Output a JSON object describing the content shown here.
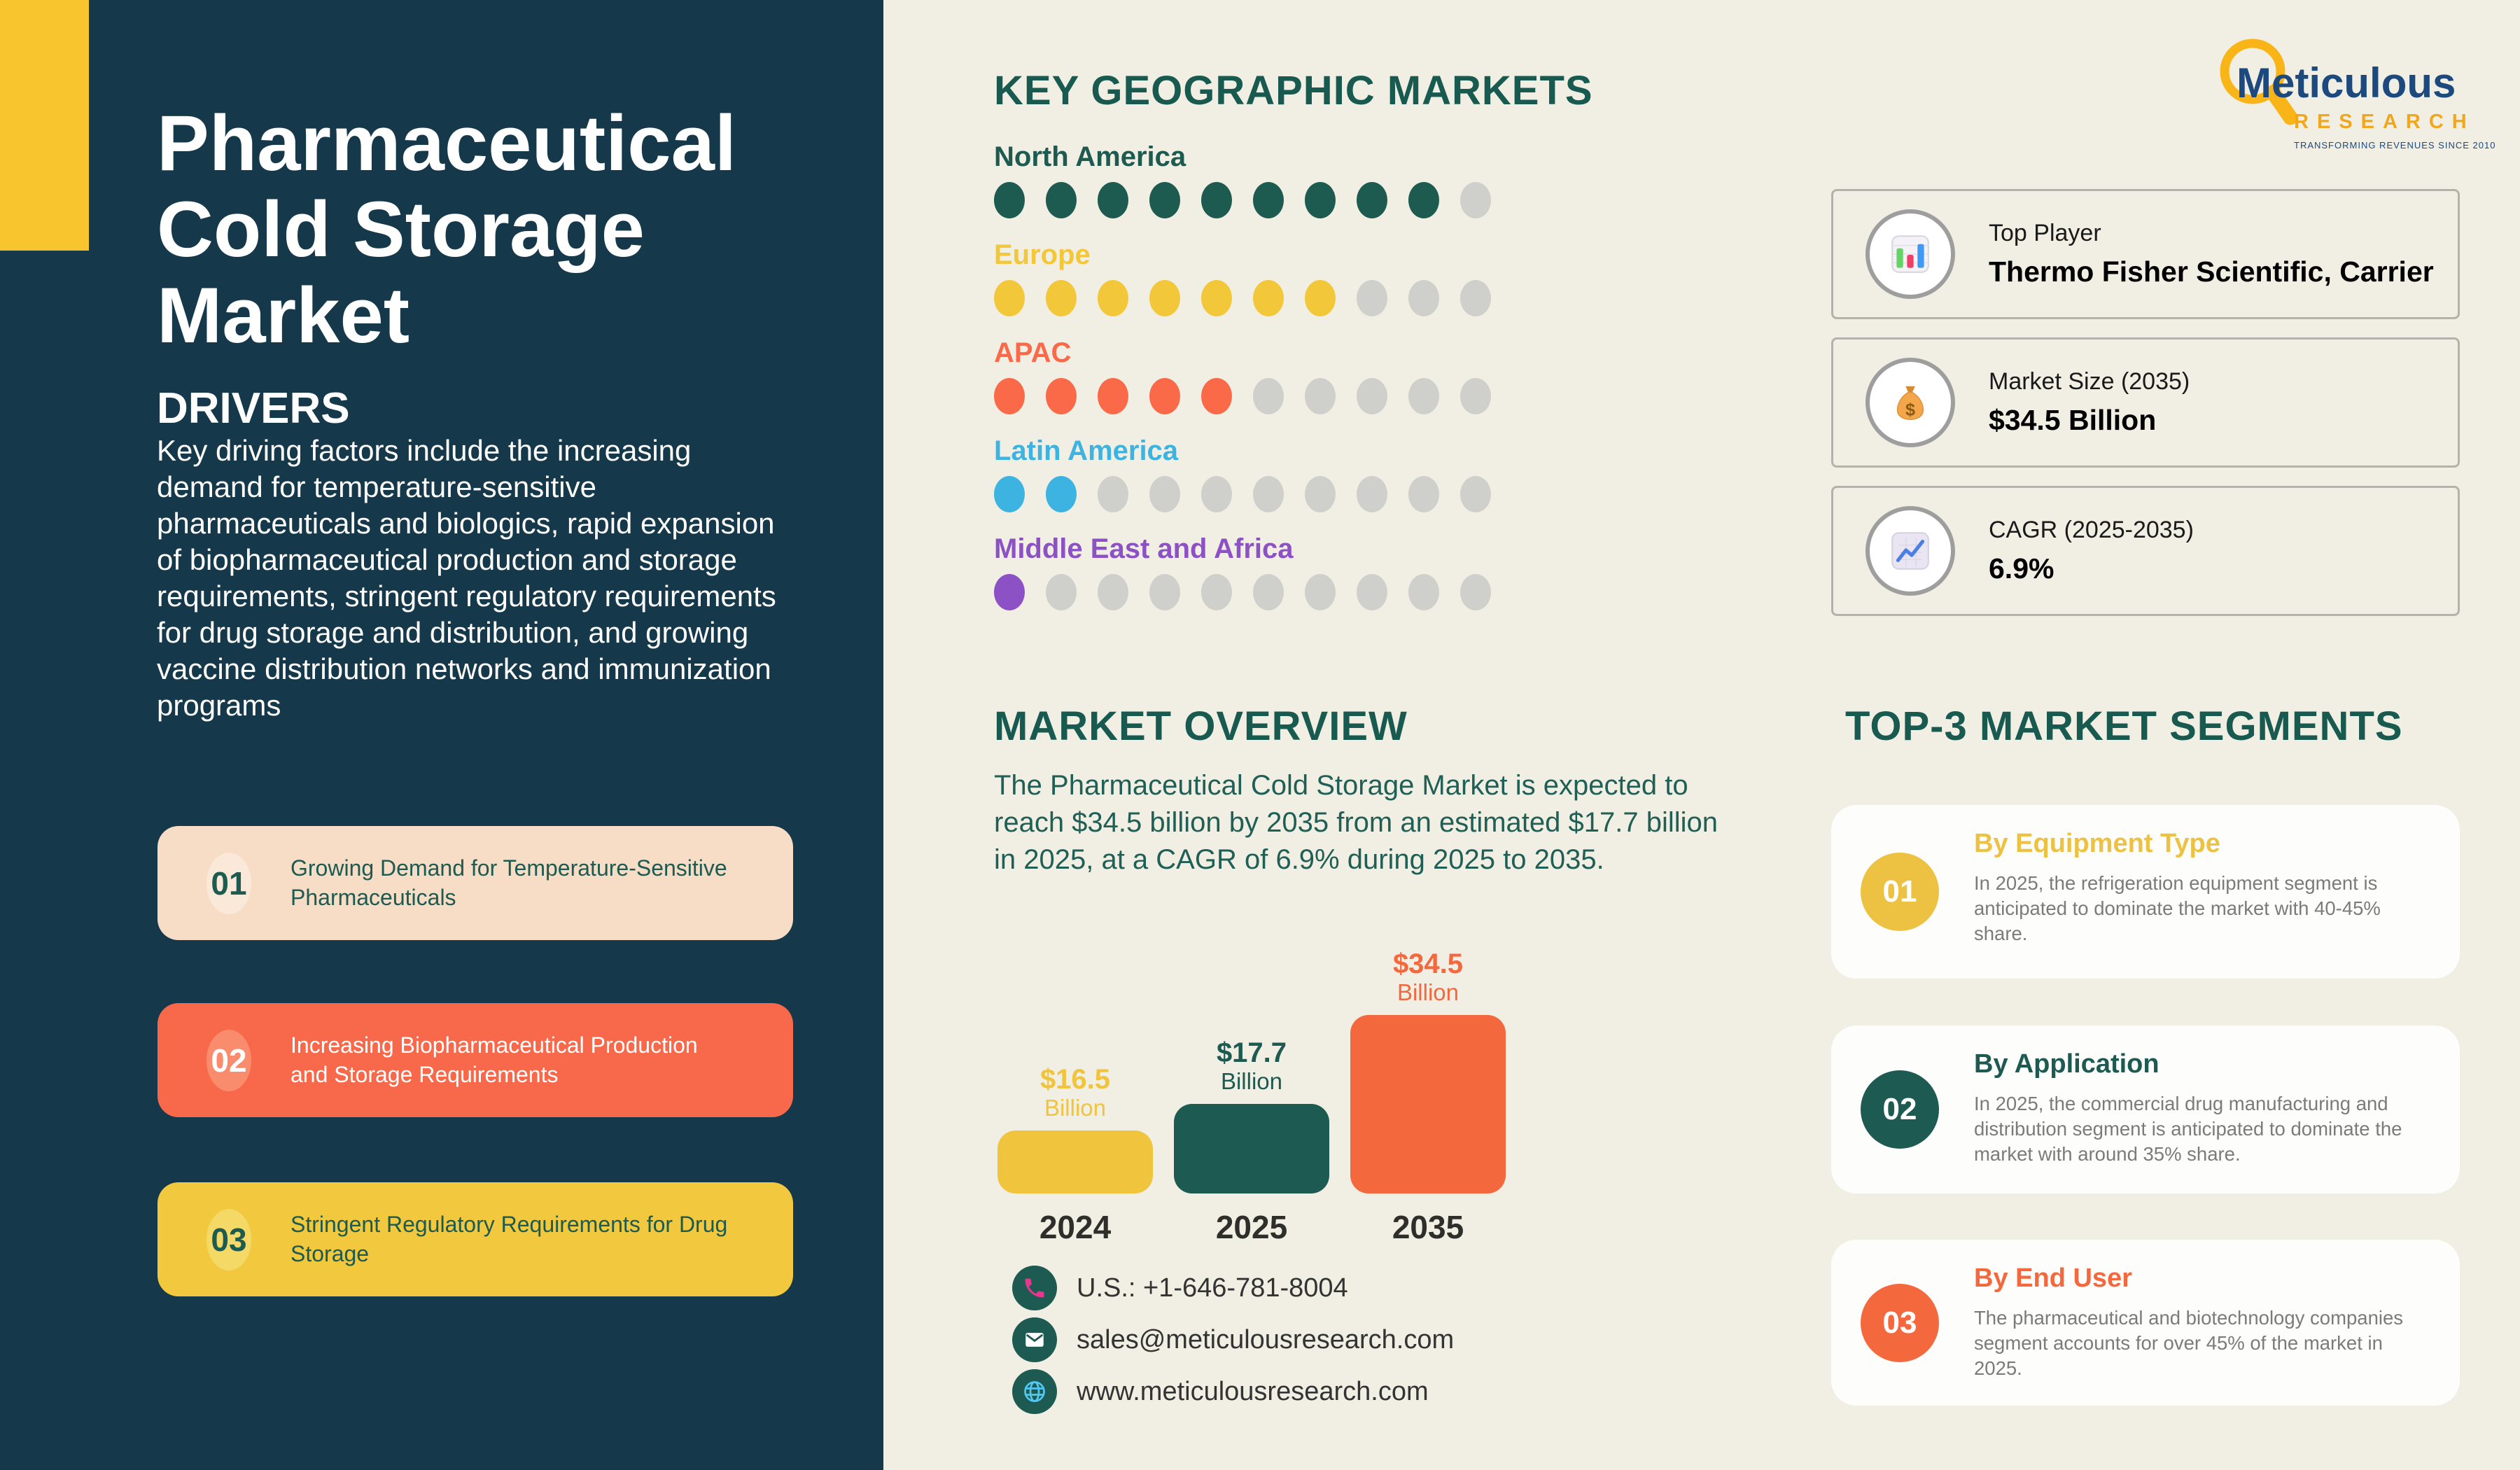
{
  "page": {
    "bg": "#f1eee3"
  },
  "sidebar": {
    "bg": "#15394b",
    "accent_color": "#f9c52e",
    "title": "Pharmaceutical Cold Storage Market",
    "drivers_heading": "DRIVERS",
    "drivers_text": "Key driving factors include the increasing demand for temperature-sensitive pharmaceuticals and biologics, rapid expansion of biopharmaceutical production and storage requirements, stringent regulatory requirements for drug storage and distribution, and growing vaccine distribution networks and immunization programs",
    "cards": [
      {
        "number": "01",
        "text": "Growing Demand for Temperature-Sensitive Pharmaceuticals",
        "bg": "#f7dcc6",
        "fg": "#1d5a50",
        "num_bg": "#fae8d8",
        "num_fg": "#1d5a50"
      },
      {
        "number": "02",
        "text": "Increasing Biopharmaceutical Production and Storage Requirements",
        "bg": "#f8684a",
        "fg": "#ffffff",
        "num_bg": "#fa8c6e",
        "num_fg": "#ffffff"
      },
      {
        "number": "03",
        "text": "Stringent Regulatory Requirements for Drug Storage",
        "bg": "#f1c83e",
        "fg": "#1d5a50",
        "num_bg": "#f5d967",
        "num_fg": "#1d5a50"
      }
    ]
  },
  "geo": {
    "heading": "KEY GEOGRAPHIC MARKETS",
    "heading_color": "#185a4f",
    "empty_color": "#cfcfcc",
    "regions": [
      {
        "name": "North America",
        "color": "#1d5a50",
        "filled": 9,
        "total": 10
      },
      {
        "name": "Europe",
        "color": "#f2c73a",
        "filled": 7,
        "total": 10
      },
      {
        "name": "APAC",
        "color": "#fa6a49",
        "filled": 5,
        "total": 10
      },
      {
        "name": "Latin America",
        "color": "#3cb3e0",
        "filled": 2,
        "total": 10
      },
      {
        "name": "Middle East and Africa",
        "color": "#8b51c5",
        "filled": 1,
        "total": 10
      }
    ]
  },
  "overview": {
    "heading": "MARKET OVERVIEW",
    "heading_color": "#185a4f",
    "text": "The Pharmaceutical Cold Storage Market is expected to reach $34.5 billion by 2035 from an estimated $17.7 billion in 2025, at a CAGR of 6.9% during 2025 to 2035.",
    "text_color": "#1f5f55",
    "bars": [
      {
        "year": "2024",
        "value": "$16.5",
        "unit": "Billion",
        "color": "#f0c43c"
      },
      {
        "year": "2025",
        "value": "$17.7",
        "unit": "Billion",
        "color": "#1d5a52"
      },
      {
        "year": "2035",
        "value": "$34.5",
        "unit": "Billion",
        "color": "#f4683e"
      }
    ]
  },
  "contact": {
    "circle_color": "#1d5a52",
    "items": [
      {
        "icon": "phone-icon",
        "text": "U.S.: +1-646-781-8004"
      },
      {
        "icon": "email-icon",
        "text": "sales@meticulousresearch.com"
      },
      {
        "icon": "globe-icon",
        "text": "www.meticulousresearch.com"
      }
    ]
  },
  "logo": {
    "word1": "Meticulous",
    "word1_color": "#1c4a7e",
    "word2": "RESEARCH",
    "word2_color": "#f2a71b",
    "tagline": "TRANSFORMING REVENUES SINCE 2010",
    "glass_color": "#f9b517"
  },
  "stats": [
    {
      "label": "Top Player",
      "value": "Thermo Fisher Scientific, Carrier",
      "icon": "bar-chart-icon"
    },
    {
      "label": "Market Size (2035)",
      "value": "$34.5 Billion",
      "icon": "money-bag-icon"
    },
    {
      "label": "CAGR (2025-2035)",
      "value": "6.9%",
      "icon": "chart-up-icon"
    }
  ],
  "segments": {
    "heading": "TOP-3 MARKET SEGMENTS",
    "heading_color": "#185a4f",
    "cards": [
      {
        "number": "01",
        "title": "By Equipment Type",
        "color": "#edc243",
        "text": "In 2025, the refrigeration equipment segment is anticipated to dominate the market with 40-45% share."
      },
      {
        "number": "02",
        "title": "By Application",
        "color": "#1d5a52",
        "text": "In 2025, the commercial drug manufacturing and distribution segment is anticipated to dominate the market with around 35% share."
      },
      {
        "number": "03",
        "title": "By End User",
        "color": "#f4683e",
        "text": "The pharmaceutical and biotechnology companies segment accounts for over 45% of the market in 2025."
      }
    ]
  },
  "chart_data": [
    {
      "type": "other",
      "subtype": "dot-matrix",
      "title": "KEY GEOGRAPHIC MARKETS",
      "categories": [
        "North America",
        "Europe",
        "APAC",
        "Latin America",
        "Middle East and Africa"
      ],
      "values": [
        9,
        7,
        5,
        2,
        1
      ],
      "max_per_row": 10,
      "colors": [
        "#1d5a50",
        "#f2c73a",
        "#fa6a49",
        "#3cb3e0",
        "#8b51c5"
      ],
      "empty_color": "#cfcfcc"
    },
    {
      "type": "bar",
      "title": "Pharmaceutical Cold Storage Market size",
      "categories": [
        "2024",
        "2025",
        "2035"
      ],
      "values": [
        16.5,
        17.7,
        34.5
      ],
      "ylabel": "USD Billion",
      "data_labels": [
        "$16.5 Billion",
        "$17.7 Billion",
        "$34.5 Billion"
      ],
      "colors": [
        "#f0c43c",
        "#1d5a52",
        "#f4683e"
      ],
      "grid": false,
      "legend": false
    }
  ]
}
